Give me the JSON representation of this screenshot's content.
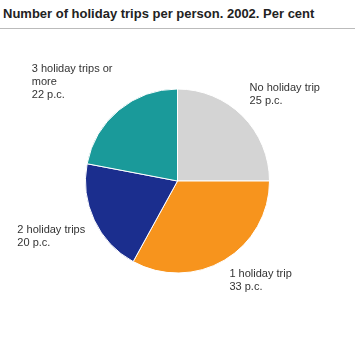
{
  "chart_data": {
    "type": "pie",
    "title": "Number of holiday trips per person. 2002. Per cent",
    "categories": [
      "No holiday trip",
      "1 holiday trip",
      "2 holiday trips",
      "3 holiday trips or more"
    ],
    "values": [
      25,
      33,
      20,
      22
    ],
    "value_labels": [
      "25 p.c.",
      "33 p.c.",
      "20 p.c.",
      "22 p.c."
    ],
    "colors": [
      "#d4d4d4",
      "#f7941d",
      "#1b2e8e",
      "#1a9a9a"
    ],
    "data_labels": true
  }
}
